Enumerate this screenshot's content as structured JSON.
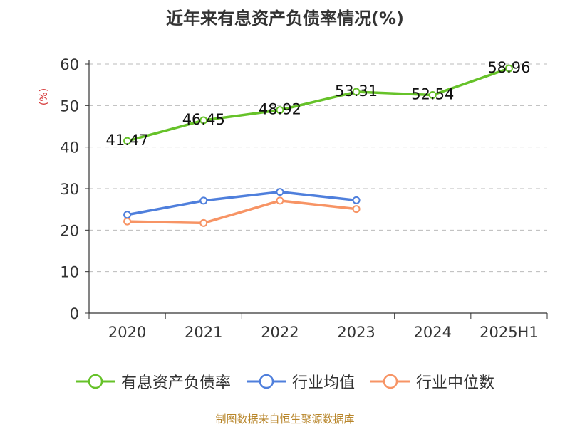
{
  "colors": {
    "series_0": "#66c229",
    "series_1": "#4f7fdc",
    "series_2": "#f79465",
    "unit": "#d32f2f",
    "source": "#b8862b",
    "grid": "#bbbbbb",
    "axis": "#333333"
  },
  "source_note": "制图数据来自恒生聚源数据库",
  "chart_data": {
    "type": "line",
    "title": "近年来有息资产负债率情况(%)",
    "ylabel": "(%)",
    "xlabel": "",
    "categories": [
      "2020",
      "2021",
      "2022",
      "2023",
      "2024",
      "2025H1"
    ],
    "ylim": [
      0,
      60
    ],
    "yticks": [
      0,
      10,
      20,
      30,
      40,
      50,
      60
    ],
    "grid": "horizontal dashed",
    "legend": "bottom",
    "series": [
      {
        "name": "有息资产负债率",
        "values": [
          41.47,
          46.45,
          48.92,
          53.31,
          52.54,
          58.96
        ],
        "labels": [
          "41.47",
          "46.45",
          "48.92",
          "53.31",
          "52.54",
          "58.96"
        ]
      },
      {
        "name": "行业均值",
        "values": [
          23.7,
          27.1,
          29.2,
          27.2,
          null,
          null
        ]
      },
      {
        "name": "行业中位数",
        "values": [
          22.1,
          21.7,
          27.1,
          25.1,
          null,
          null
        ]
      }
    ]
  }
}
